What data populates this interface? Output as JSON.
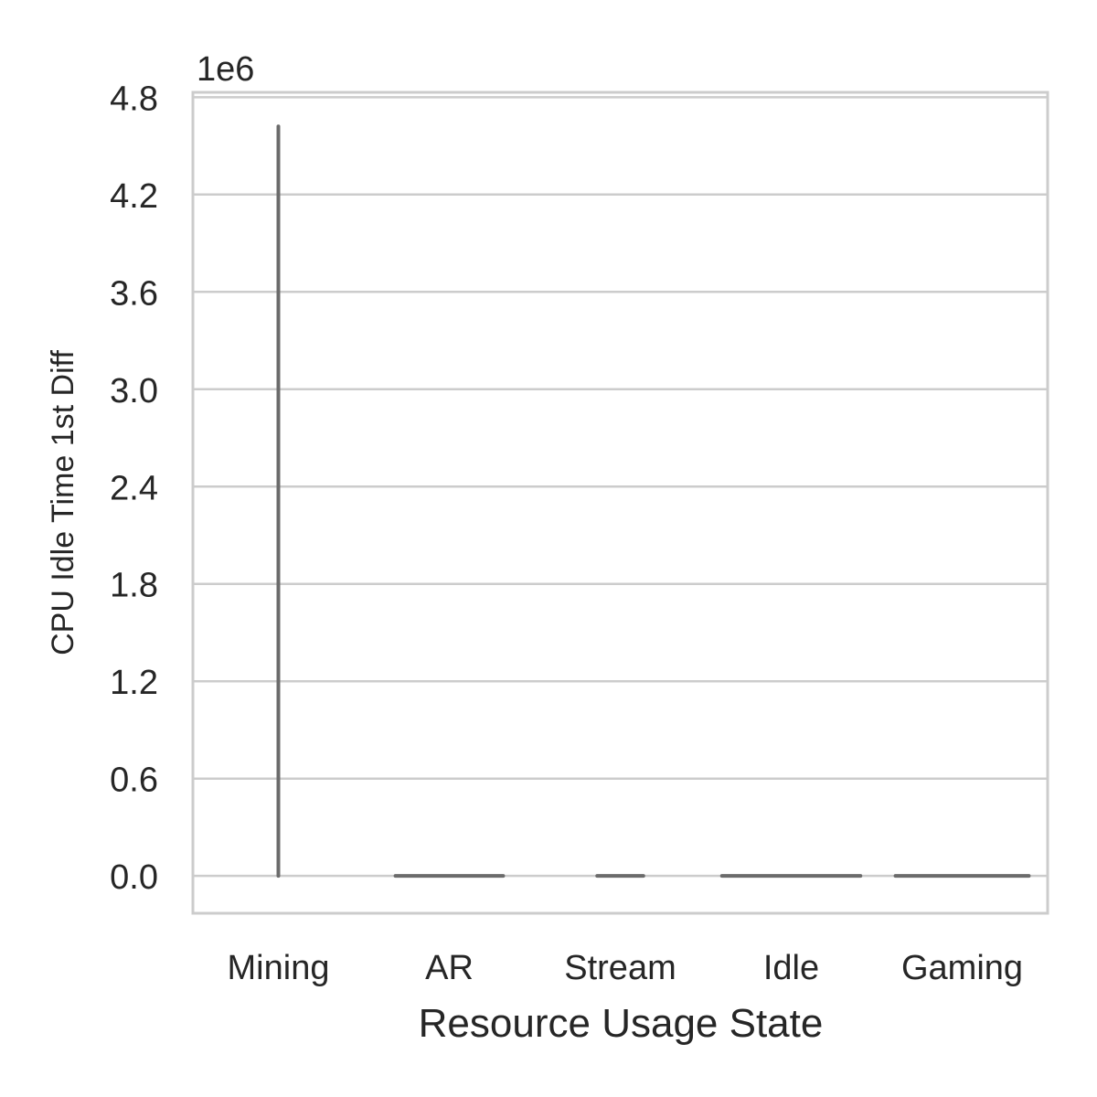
{
  "chart_data": {
    "type": "violin",
    "categories": [
      "Mining",
      "AR",
      "Stream",
      "Idle",
      "Gaming"
    ],
    "series": [
      {
        "category": "Mining",
        "min": 0,
        "max": 4620000,
        "spread": 0
      },
      {
        "category": "AR",
        "min": 0,
        "max": 0,
        "spread": 0.63
      },
      {
        "category": "Stream",
        "min": 0,
        "max": 0,
        "spread": 0.27
      },
      {
        "category": "Idle",
        "min": 0,
        "max": 0,
        "spread": 0.81
      },
      {
        "category": "Gaming",
        "min": 0,
        "max": 0,
        "spread": 0.78
      }
    ],
    "xlabel": "Resource Usage State",
    "ylabel": "CPU Idle Time 1st Diff",
    "y_offset_label": "1e6",
    "y_ticks": [
      "0.0",
      "0.6",
      "1.2",
      "1.8",
      "2.4",
      "3.0",
      "3.6",
      "4.2",
      "4.8"
    ],
    "y_tick_values": [
      0,
      0.6,
      1.2,
      1.8,
      2.4,
      3.0,
      3.6,
      4.2,
      4.8
    ],
    "y_scale": 1000000,
    "ylim": [
      -0.23,
      4.83
    ],
    "grid": "horizontal",
    "colors": {
      "grid": "#cccccc",
      "frame": "#cccccc",
      "violin": "#6b6b6b",
      "text": "#262626"
    }
  }
}
